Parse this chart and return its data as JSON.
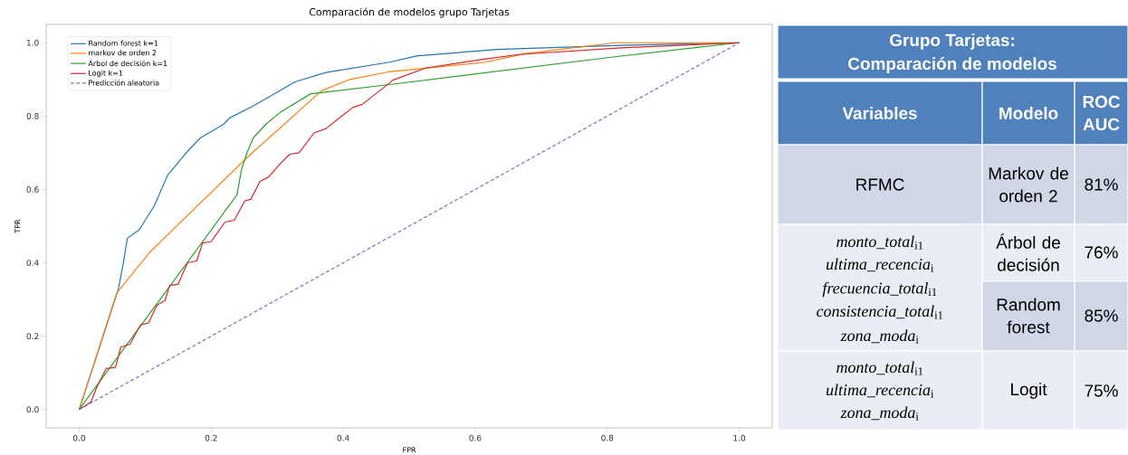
{
  "chart_data": [
    {
      "type": "line",
      "title": "Comparación de modelos grupo Tarjetas",
      "xlabel": "FPR",
      "ylabel": "TPR",
      "xlim": [
        -0.05,
        1.05
      ],
      "ylim": [
        -0.05,
        1.05
      ],
      "xticks": [
        {
          "value": 0,
          "label": "0.0"
        },
        {
          "value": 0.2,
          "label": "0.2"
        },
        {
          "value": 0.4,
          "label": "0.4"
        },
        {
          "value": 0.6,
          "label": "0.6"
        },
        {
          "value": 0.8,
          "label": "0.8"
        },
        {
          "value": 1,
          "label": "1.0"
        }
      ],
      "yticks": [
        {
          "value": 0,
          "label": "0.0"
        },
        {
          "value": 0.2,
          "label": "0.2"
        },
        {
          "value": 0.4,
          "label": "0.4"
        },
        {
          "value": 0.6,
          "label": "0.6"
        },
        {
          "value": 0.8,
          "label": "0.8"
        },
        {
          "value": 1,
          "label": "1.0"
        }
      ],
      "legend": "top left",
      "marker": "none",
      "grid": false,
      "series": [
        {
          "name": "Random forest k=1",
          "color": "#1f77b4",
          "x": [
            0,
            0.059,
            0.066,
            0.073,
            0.091,
            0.114,
            0.134,
            0.164,
            0.184,
            0.219,
            0.228,
            0.264,
            0.292,
            0.328,
            0.374,
            0.47,
            0.511,
            0.634,
            0.821,
            1
          ],
          "values": [
            0,
            0.326,
            0.39,
            0.467,
            0.49,
            0.556,
            0.639,
            0.704,
            0.741,
            0.778,
            0.795,
            0.828,
            0.857,
            0.894,
            0.919,
            0.947,
            0.964,
            0.982,
            0.993,
            1
          ]
        },
        {
          "name": "markov de orden 2",
          "color": "#ff7f0e",
          "x": [
            0,
            0.057,
            0.107,
            0.255,
            0.367,
            0.41,
            0.47,
            0.616,
            0.675,
            0.812,
            1
          ],
          "values": [
            0,
            0.318,
            0.429,
            0.688,
            0.869,
            0.9,
            0.921,
            0.947,
            0.97,
            1,
            1
          ]
        },
        {
          "name": "Árbol de decisión k=1",
          "color": "#2ca02c",
          "x": [
            0,
            0.239,
            0.246,
            0.255,
            0.264,
            0.283,
            0.305,
            0.351,
            0.367,
            0.47,
            0.803,
            1
          ],
          "values": [
            0,
            0.585,
            0.655,
            0.704,
            0.741,
            0.778,
            0.811,
            0.861,
            0.864,
            0.886,
            0.96,
            1
          ]
        },
        {
          "name": "Logit k=1",
          "color": "#d62728",
          "x": [
            0,
            0.018,
            0.027,
            0.041,
            0.055,
            0.063,
            0.077,
            0.093,
            0.105,
            0.118,
            0.13,
            0.137,
            0.15,
            0.164,
            0.178,
            0.187,
            0.2,
            0.221,
            0.235,
            0.251,
            0.26,
            0.274,
            0.287,
            0.305,
            0.319,
            0.333,
            0.356,
            0.374,
            0.397,
            0.415,
            0.429,
            0.47,
            0.475,
            0.525,
            0.616,
            0.666,
            0.821,
            1
          ],
          "values": [
            0,
            0.021,
            0.062,
            0.112,
            0.115,
            0.17,
            0.178,
            0.231,
            0.236,
            0.285,
            0.297,
            0.338,
            0.342,
            0.4,
            0.405,
            0.454,
            0.458,
            0.511,
            0.516,
            0.569,
            0.573,
            0.622,
            0.634,
            0.671,
            0.696,
            0.7,
            0.754,
            0.766,
            0.799,
            0.824,
            0.832,
            0.89,
            0.898,
            0.931,
            0.956,
            0.968,
            0.986,
            1
          ]
        },
        {
          "name": "Predicción aleatoria",
          "color": "#9467bd",
          "line_style": "dashed",
          "x": [
            0,
            1
          ],
          "values": [
            0,
            1
          ]
        }
      ]
    },
    {
      "type": "other",
      "title": "Grupo Tarjetas:",
      "subtitle": "Comparación de modelos",
      "annotations": [
        "Variables",
        "Modelo",
        "ROC AUC",
        "RFMC",
        "Markov de orden 2",
        "81%",
        "*monto_total*$_{i1}$",
        "*ultima_recencia*$_{i}$",
        "*frecuencia_total*$_{i1}$",
        "*consistencia_total*$_{i1}$",
        "*zona_moda*$_{i}$",
        "Árbol de decisión",
        "76%",
        "Random forest",
        "85%",
        "*monto_total*$_{i1}$",
        "*ultima_recencia*$_{i}$",
        "*zona_moda*$_{i}$",
        "Logit",
        "75%"
      ]
    }
  ]
}
